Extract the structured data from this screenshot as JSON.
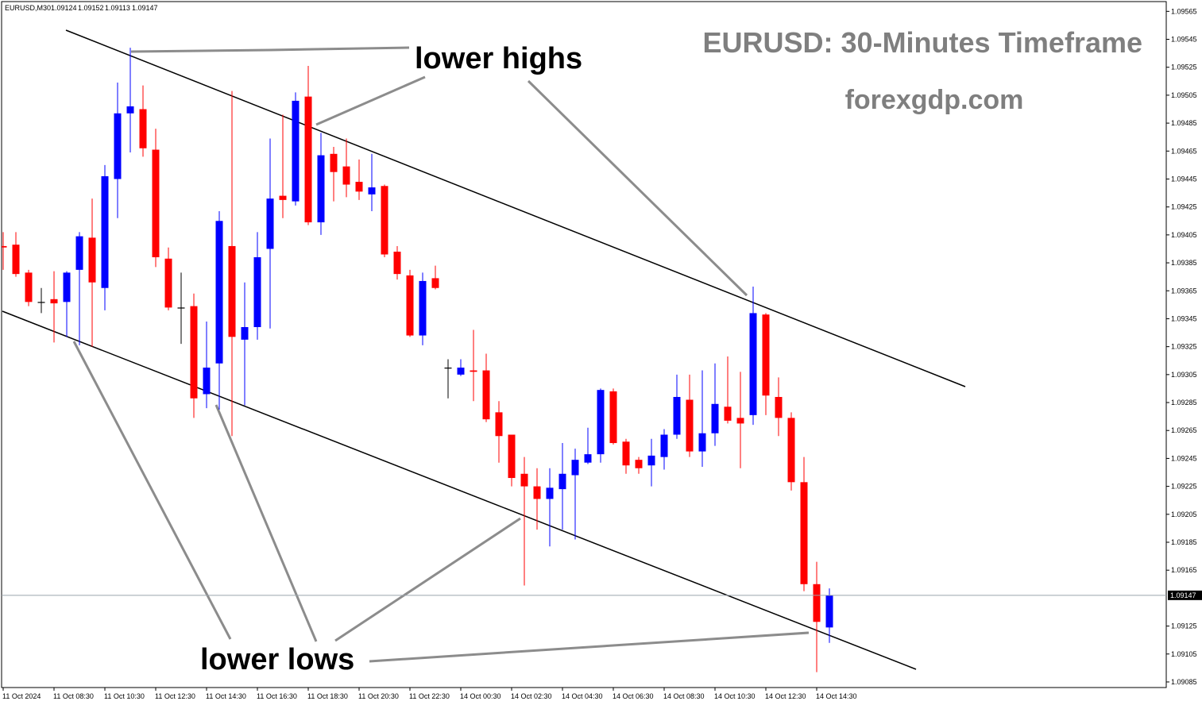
{
  "chart_data": {
    "type": "candlestick",
    "symbol": "EURUSD,M30",
    "title": "EURUSD: 30-Minutes Timeframe",
    "subtitle": "forexgdp.com",
    "annotations": [
      "lower highs",
      "lower lows"
    ],
    "categories": [
      "11 Oct 2024",
      null,
      null,
      null,
      "11 Oct 08:30",
      null,
      null,
      null,
      "11 Oct 10:30",
      null,
      null,
      null,
      "11 Oct 12:30",
      null,
      null,
      null,
      "11 Oct 14:30",
      null,
      null,
      null,
      "11 Oct 16:30",
      null,
      null,
      null,
      "11 Oct 18:30",
      null,
      null,
      null,
      "11 Oct 20:30",
      null,
      null,
      null,
      "11 Oct 22:30",
      null,
      null,
      null,
      "14 Oct 00:30",
      null,
      null,
      null,
      "14 Oct 02:30",
      null,
      null,
      null,
      "14 Oct 04:30",
      null,
      null,
      null,
      "14 Oct 06:30",
      null,
      null,
      null,
      "14 Oct 08:30",
      null,
      null,
      null,
      "14 Oct 10:30",
      null,
      null,
      null,
      "14 Oct 12:30",
      null,
      null,
      null,
      "14 Oct 14:30",
      null
    ],
    "open": [
      1.09397,
      1.09398,
      1.09378,
      1.09357,
      1.09359,
      1.09357,
      1.0938,
      1.09403,
      1.09367,
      1.09445,
      1.09492,
      1.09495,
      1.09466,
      1.09388,
      1.09353,
      1.09354,
      1.09291,
      1.09313,
      1.09397,
      1.0933,
      1.09339,
      1.09395,
      1.09433,
      1.09429,
      1.09504,
      1.09414,
      1.09463,
      1.09454,
      1.09443,
      1.09434,
      1.0944,
      1.09393,
      1.09376,
      1.09333,
      1.09374,
      1.0931,
      1.09305,
      1.09308,
      1.09308,
      1.09278,
      1.09262,
      1.09234,
      1.09225,
      1.09216,
      1.09223,
      1.09233,
      1.09242,
      1.09248,
      1.09293,
      1.09257,
      1.09244,
      1.0924,
      1.09246,
      1.09262,
      1.09287,
      1.0925,
      1.09263,
      1.09282,
      1.09274,
      1.09276,
      1.09348,
      1.09289,
      1.09274,
      1.09228,
      1.09155,
      1.09124
    ],
    "high": [
      1.09407,
      1.09407,
      1.0938,
      1.09367,
      1.09379,
      1.09379,
      1.09407,
      1.09431,
      1.09455,
      1.09514,
      1.09539,
      1.09512,
      1.09481,
      1.09396,
      1.09378,
      1.09363,
      1.09343,
      1.09422,
      1.09508,
      1.09371,
      1.09407,
      1.09474,
      1.09491,
      1.09507,
      1.09526,
      1.09478,
      1.09468,
      1.09474,
      1.09459,
      1.09463,
      1.09441,
      1.09397,
      1.0938,
      1.09378,
      1.09383,
      1.09316,
      1.09316,
      1.09337,
      1.0932,
      1.09286,
      1.09262,
      1.09246,
      1.09238,
      1.09238,
      1.09256,
      1.09252,
      1.09267,
      1.09295,
      1.09295,
      1.09259,
      1.09246,
      1.09259,
      1.09266,
      1.09305,
      1.09305,
      1.09308,
      1.09313,
      1.09318,
      1.09307,
      1.09368,
      1.09349,
      1.09303,
      1.09278,
      1.09246,
      1.09171,
      1.09152
    ],
    "low": [
      1.0938,
      1.09375,
      1.09354,
      1.09349,
      1.09328,
      1.09332,
      1.09326,
      1.09325,
      1.09351,
      1.09417,
      1.09464,
      1.09461,
      1.09382,
      1.09351,
      1.09327,
      1.09274,
      1.09281,
      1.0928,
      1.09261,
      1.09283,
      1.0933,
      1.09338,
      1.09417,
      1.09426,
      1.09412,
      1.09405,
      1.09429,
      1.09432,
      1.0943,
      1.09422,
      1.09389,
      1.09373,
      1.09332,
      1.09326,
      1.09366,
      1.09288,
      1.09304,
      1.09286,
      1.09271,
      1.09242,
      1.09225,
      1.09154,
      1.09194,
      1.09182,
      1.09194,
      1.09187,
      1.09241,
      1.09242,
      1.09255,
      1.09234,
      1.09234,
      1.09225,
      1.09237,
      1.09259,
      1.09246,
      1.09239,
      1.09254,
      1.0927,
      1.09238,
      1.09269,
      1.09276,
      1.09261,
      1.09222,
      1.0915,
      1.09092,
      1.09113
    ],
    "close": [
      1.09396,
      1.09377,
      1.09357,
      1.09357,
      1.09356,
      1.09378,
      1.09404,
      1.09371,
      1.09447,
      1.09492,
      1.09497,
      1.09467,
      1.09389,
      1.09353,
      1.09353,
      1.09288,
      1.0931,
      1.09415,
      1.09332,
      1.09339,
      1.09389,
      1.09431,
      1.0943,
      1.09501,
      1.09414,
      1.09462,
      1.0945,
      1.09441,
      1.09436,
      1.09439,
      1.09391,
      1.09377,
      1.09333,
      1.09372,
      1.09367,
      1.0931,
      1.0931,
      1.09307,
      1.09273,
      1.09261,
      1.09231,
      1.09225,
      1.09216,
      1.09224,
      1.09234,
      1.09244,
      1.09248,
      1.09294,
      1.09256,
      1.0924,
      1.09238,
      1.09247,
      1.09262,
      1.09289,
      1.0925,
      1.09263,
      1.09284,
      1.09272,
      1.0927,
      1.09349,
      1.0929,
      1.09274,
      1.09228,
      1.09155,
      1.09128,
      1.09147
    ],
    "up_color": "#0000ff",
    "down_color": "#ff0000",
    "doji_color": "#000000",
    "ylim": [
      1.09081,
      1.09572
    ],
    "yticks": [
      1.09565,
      1.09545,
      1.09525,
      1.09505,
      1.09485,
      1.09465,
      1.09445,
      1.09425,
      1.09405,
      1.09385,
      1.09365,
      1.09345,
      1.09325,
      1.09305,
      1.09285,
      1.09265,
      1.09245,
      1.09225,
      1.09205,
      1.09185,
      1.09165,
      1.09125,
      1.09105,
      1.09085
    ],
    "grid": false
  }
}
